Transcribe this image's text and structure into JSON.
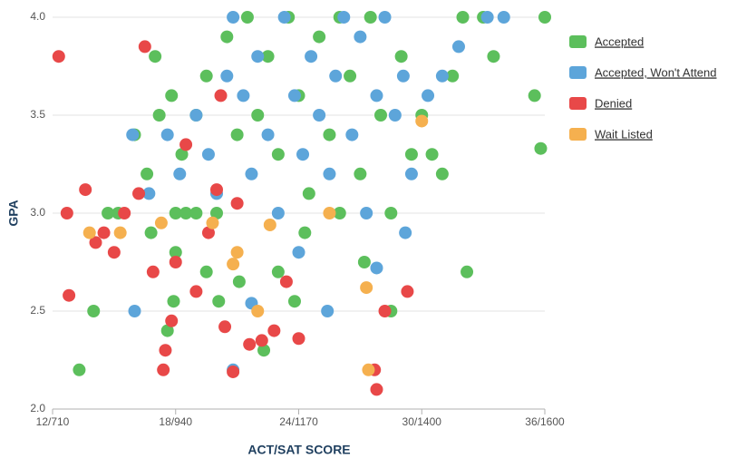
{
  "chart_data": {
    "type": "scatter",
    "x_label": "ACT/SAT SCORE",
    "y_label": "GPA",
    "xlim": [
      12,
      36
    ],
    "ylim": [
      2.0,
      4.0
    ],
    "xticks": [
      {
        "value": 12,
        "label": "12/710"
      },
      {
        "value": 18,
        "label": "18/940"
      },
      {
        "value": 24,
        "label": "24/1170"
      },
      {
        "value": 30,
        "label": "30/1400"
      },
      {
        "value": 36,
        "label": "36/1600"
      }
    ],
    "yticks": [
      {
        "value": 2,
        "label": "2.0"
      },
      2.5,
      {
        "value": 3,
        "label": "3.0"
      },
      3.5,
      {
        "value": 4,
        "label": "4.0"
      }
    ],
    "grid": true,
    "legend": "right",
    "series": [
      {
        "name": "Accepted",
        "color": "#5cbf5c",
        "x": [
          13.3,
          14.0,
          15.2,
          14.7,
          16.0,
          16.6,
          17.0,
          17.2,
          17.8,
          18.0,
          18.5,
          19.0,
          19.5,
          20.0,
          20.5,
          21.0,
          21.5,
          22.0,
          22.5,
          23.0,
          23.5,
          24.0,
          24.5,
          25.0,
          25.5,
          26.0,
          26.5,
          27.0,
          27.5,
          28.0,
          28.5,
          29.0,
          29.5,
          30.0,
          30.5,
          31.0,
          31.5,
          32.0,
          33.0,
          33.5,
          35.5,
          36.0,
          35.8,
          32.2,
          28.5,
          27.2,
          22.3,
          17.6,
          17.9,
          23.0,
          19.5,
          18.0,
          20.1,
          24.3,
          21.1,
          26.0,
          19.0,
          18.3,
          16.8,
          23.8
        ],
        "values": [
          2.2,
          2.5,
          3.0,
          3.0,
          3.4,
          3.2,
          3.8,
          3.5,
          3.6,
          3.0,
          3.0,
          3.0,
          3.7,
          3.0,
          3.9,
          3.4,
          4.0,
          3.5,
          3.8,
          3.3,
          4.0,
          3.6,
          3.1,
          3.9,
          3.4,
          4.0,
          3.7,
          3.2,
          4.0,
          3.5,
          3.0,
          3.8,
          3.3,
          3.5,
          3.3,
          3.2,
          3.7,
          4.0,
          4.0,
          3.8,
          3.6,
          4.0,
          3.33,
          2.7,
          2.5,
          2.75,
          2.3,
          2.4,
          2.55,
          2.7,
          2.7,
          2.8,
          2.55,
          2.9,
          2.65,
          3.0,
          3.5,
          3.3,
          2.9,
          2.55
        ]
      },
      {
        "name": "Accepted, Won't Attend",
        "color": "#5da5da",
        "x": [
          15.9,
          16.7,
          16.0,
          17.6,
          18.2,
          19.0,
          19.6,
          20.0,
          20.5,
          20.8,
          21.3,
          21.7,
          22.0,
          22.5,
          23.0,
          23.3,
          23.8,
          24.2,
          24.6,
          25.0,
          25.5,
          25.8,
          26.2,
          26.6,
          27.0,
          27.3,
          27.8,
          28.2,
          28.7,
          29.1,
          29.5,
          30.3,
          31.0,
          31.8,
          33.2,
          34.0,
          27.8,
          25.4,
          20.8,
          21.7,
          24.0,
          29.2
        ],
        "values": [
          3.4,
          3.1,
          2.5,
          3.4,
          3.2,
          3.5,
          3.3,
          3.1,
          3.7,
          4.0,
          3.6,
          3.2,
          3.8,
          3.4,
          3.0,
          4.0,
          3.6,
          3.3,
          3.8,
          3.5,
          3.2,
          3.7,
          4.0,
          3.4,
          3.9,
          3.0,
          3.6,
          4.0,
          3.5,
          3.7,
          3.2,
          3.6,
          3.7,
          3.85,
          4.0,
          4.0,
          2.72,
          2.5,
          2.2,
          2.54,
          2.8,
          2.9
        ]
      },
      {
        "name": "Denied",
        "color": "#e84848",
        "x": [
          12.3,
          12.7,
          12.8,
          13.6,
          14.1,
          14.5,
          15.0,
          15.5,
          16.2,
          16.5,
          16.9,
          17.4,
          17.5,
          17.8,
          18.0,
          18.5,
          19.0,
          19.6,
          20.0,
          20.4,
          20.8,
          21.6,
          22.2,
          22.8,
          23.4,
          24.0,
          27.7,
          27.8,
          28.2,
          29.3,
          20.2,
          21.0
        ],
        "values": [
          3.8,
          3.0,
          2.58,
          3.12,
          2.85,
          2.9,
          2.8,
          3.0,
          3.1,
          3.85,
          2.7,
          2.2,
          2.3,
          2.45,
          2.75,
          3.35,
          2.6,
          2.9,
          3.12,
          2.42,
          2.19,
          2.33,
          2.35,
          2.4,
          2.65,
          2.36,
          2.2,
          2.1,
          2.5,
          2.6,
          3.6,
          3.05
        ]
      },
      {
        "name": "Wait Listed",
        "color": "#f5b04f",
        "x": [
          13.8,
          15.3,
          17.3,
          19.8,
          21.0,
          20.8,
          22.6,
          22.0,
          27.3,
          27.4,
          30.0,
          25.5
        ],
        "values": [
          2.9,
          2.9,
          2.95,
          2.95,
          2.8,
          2.74,
          2.94,
          2.5,
          2.62,
          2.2,
          3.47,
          3.0
        ]
      }
    ]
  }
}
